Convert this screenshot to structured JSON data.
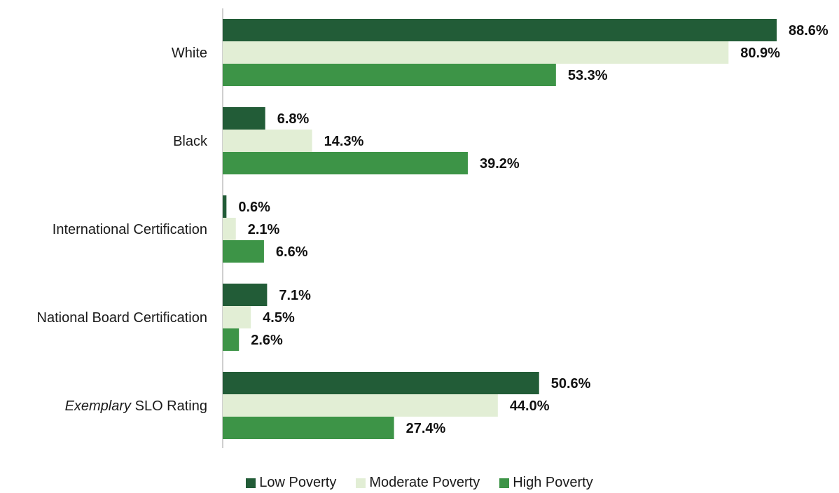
{
  "chart_data": {
    "type": "bar",
    "orientation": "horizontal",
    "categories": [
      {
        "pre_italic": "",
        "italic": "",
        "text": "White"
      },
      {
        "pre_italic": "",
        "italic": "",
        "text": "Black"
      },
      {
        "pre_italic": "",
        "italic": "",
        "text": "International Certification"
      },
      {
        "pre_italic": "",
        "italic": "",
        "text": "National Board Certification"
      },
      {
        "pre_italic": "",
        "italic": "Exemplary",
        "text": " SLO Rating"
      }
    ],
    "series": [
      {
        "name": "Low Poverty",
        "color": "#225c37",
        "values": [
          88.6,
          6.8,
          0.6,
          7.1,
          50.6
        ]
      },
      {
        "name": "Moderate Poverty",
        "color": "#e2eed5",
        "values": [
          80.9,
          14.3,
          2.1,
          4.5,
          44.0
        ]
      },
      {
        "name": "High Poverty",
        "color": "#3d9447",
        "values": [
          53.3,
          39.2,
          6.6,
          2.6,
          27.4
        ]
      }
    ],
    "value_suffix": "%",
    "xlim": [
      0,
      100
    ],
    "grid": false,
    "legend_position": "bottom"
  }
}
